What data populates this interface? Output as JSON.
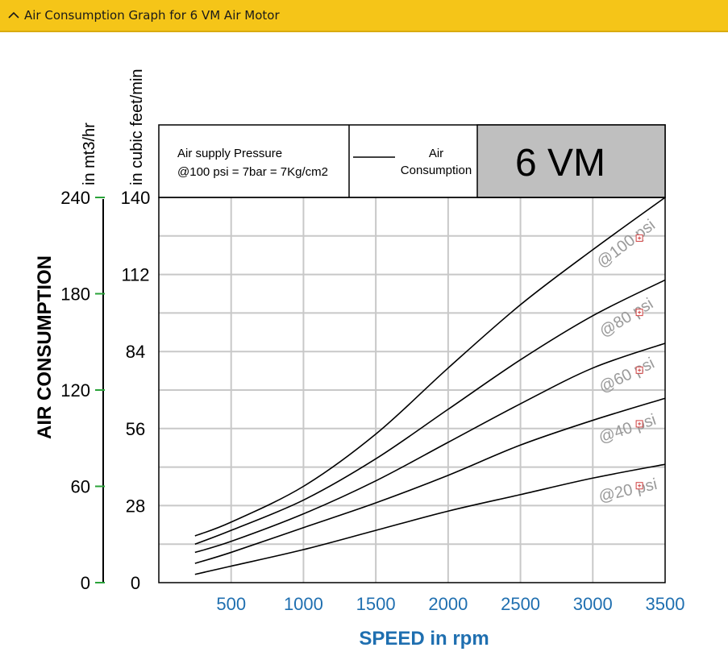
{
  "header": {
    "title": "Air Consumption Graph for 6 VM Air Motor",
    "icon": "chevron-up-icon"
  },
  "chart_data": {
    "type": "line",
    "title": "6 VM",
    "legend": {
      "note_line1": "Air supply Pressure",
      "note_line2": "@100 psi = 7bar = 7Kg/cm2",
      "entry_line1": "Air",
      "entry_line2": "Consumption"
    },
    "xlabel": "SPEED in rpm",
    "ylabel": "AIR CONSUMPTION",
    "y_unit_label_mt3": "in mt3/hr",
    "y_unit_label_cfm": "in cubic feet/min",
    "xlim": [
      0,
      3500
    ],
    "x_ticks": [
      "500",
      "1000",
      "1500",
      "2000",
      "2500",
      "3000",
      "3500"
    ],
    "ylim_cfm": [
      0,
      140
    ],
    "y_ticks_cfm": [
      "0",
      "28",
      "56",
      "84",
      "112",
      "140"
    ],
    "ylim_mt3": [
      0,
      240
    ],
    "y_ticks_mt3": [
      "0",
      "60",
      "120",
      "180",
      "240"
    ],
    "grid": true,
    "series": [
      {
        "name": "@100 psi",
        "x": [
          250,
          500,
          1000,
          1500,
          2000,
          2500,
          3000,
          3500
        ],
        "y": [
          17,
          22,
          35,
          54,
          78,
          101,
          121,
          140
        ]
      },
      {
        "name": "@80 psi",
        "x": [
          250,
          500,
          1000,
          1500,
          2000,
          2500,
          3000,
          3500
        ],
        "y": [
          14,
          19,
          30,
          45,
          63,
          81,
          97,
          110
        ]
      },
      {
        "name": "@60 psi",
        "x": [
          250,
          500,
          1000,
          1500,
          2000,
          2500,
          3000,
          3500
        ],
        "y": [
          11,
          15,
          25,
          37,
          51,
          65,
          78,
          87
        ]
      },
      {
        "name": "@40 psi",
        "x": [
          250,
          500,
          1000,
          1500,
          2000,
          2500,
          3000,
          3500
        ],
        "y": [
          7,
          11,
          20,
          29,
          39,
          50,
          59,
          67
        ]
      },
      {
        "name": "@20 psi",
        "x": [
          250,
          500,
          1000,
          1500,
          2000,
          2500,
          3000,
          3500
        ],
        "y": [
          3,
          6,
          12,
          19,
          26,
          32,
          38,
          43
        ]
      }
    ]
  }
}
